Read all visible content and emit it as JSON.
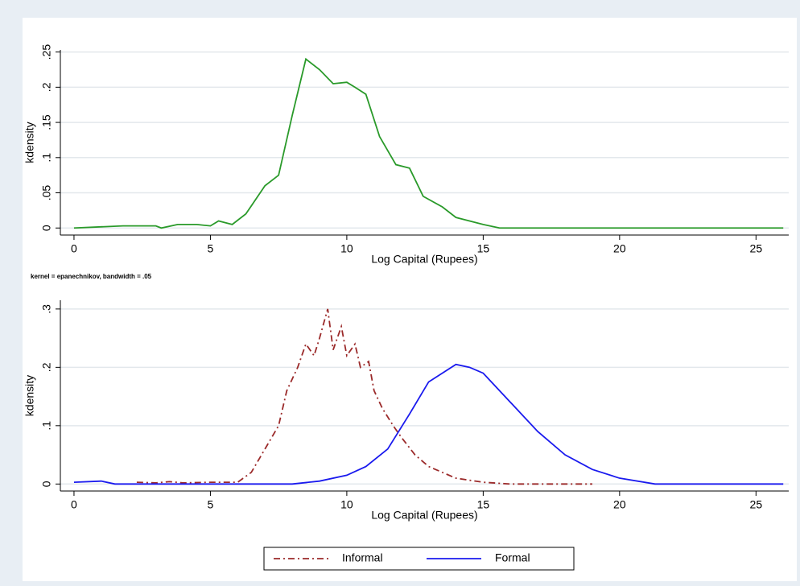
{
  "chart_data": [
    {
      "type": "line",
      "xlabel": "Log Capital (Rupees)",
      "ylabel": "kdensity",
      "note": "kernel = epanechnikov, bandwidth = .05",
      "xlim": [
        -0.5,
        26.2
      ],
      "xticks": [
        0,
        5,
        10,
        15,
        20,
        25
      ],
      "ylim": [
        -0.01,
        0.253
      ],
      "yticks": [
        0,
        {
          "value": 0.05,
          "label": ".05"
        },
        {
          "value": 0.1,
          "label": ".1"
        },
        {
          "value": 0.15,
          "label": ".15"
        },
        {
          "value": 0.2,
          "label": ".2"
        },
        {
          "value": 0.25,
          "label": ".25"
        }
      ],
      "grid": true,
      "series": [
        {
          "color": "#2a9a2a",
          "style": "solid",
          "x": [
            0,
            1.8,
            3,
            3.2,
            3.8,
            4.5,
            5,
            5.3,
            5.8,
            6.3,
            7,
            7.5,
            8,
            8.5,
            9,
            9.5,
            10,
            10.3,
            10.7,
            11.2,
            11.8,
            12.3,
            12.8,
            13.5,
            14,
            15,
            15.6,
            26
          ],
          "values": [
            0,
            0.003,
            0.003,
            0,
            0.005,
            0.005,
            0.003,
            0.01,
            0.005,
            0.02,
            0.06,
            0.075,
            0.16,
            0.24,
            0.225,
            0.205,
            0.207,
            0.2,
            0.19,
            0.13,
            0.09,
            0.085,
            0.045,
            0.03,
            0.015,
            0.005,
            0,
            0
          ]
        }
      ]
    },
    {
      "type": "line",
      "xlabel": "Log Capital (Rupees)",
      "ylabel": "kdensity",
      "xlim": [
        -0.5,
        26.2
      ],
      "xticks": [
        0,
        5,
        10,
        15,
        20,
        25
      ],
      "ylim": [
        -0.012,
        0.315
      ],
      "yticks": [
        0,
        {
          "value": 0.1,
          "label": ".1"
        },
        {
          "value": 0.2,
          "label": ".2"
        },
        {
          "value": 0.3,
          "label": ".3"
        }
      ],
      "grid": true,
      "legend": "bottom",
      "series": [
        {
          "name": "Informal",
          "color": "#9b2a2a",
          "style": "dashdot",
          "x": [
            2.3,
            3,
            3.5,
            4,
            5,
            6,
            6.5,
            7,
            7.5,
            7.8,
            8.2,
            8.5,
            8.8,
            9,
            9.3,
            9.5,
            9.8,
            10,
            10.3,
            10.5,
            10.8,
            11,
            11.3,
            11.7,
            12,
            12.5,
            13,
            13.5,
            14,
            15,
            16,
            19
          ],
          "values": [
            0.003,
            0.002,
            0.004,
            0.002,
            0.003,
            0.003,
            0.02,
            0.06,
            0.1,
            0.16,
            0.2,
            0.24,
            0.22,
            0.25,
            0.3,
            0.23,
            0.27,
            0.22,
            0.24,
            0.2,
            0.21,
            0.16,
            0.13,
            0.1,
            0.08,
            0.05,
            0.03,
            0.02,
            0.01,
            0.003,
            0,
            0
          ]
        },
        {
          "name": "Formal",
          "color": "#1a1aee",
          "style": "solid",
          "x": [
            0,
            1,
            1.5,
            8,
            9,
            10,
            10.7,
            11.5,
            12.3,
            13,
            13.5,
            14,
            14.5,
            15,
            16,
            17,
            18,
            19,
            20,
            21.3,
            26
          ],
          "values": [
            0.003,
            0.005,
            0,
            0,
            0.005,
            0.015,
            0.03,
            0.06,
            0.12,
            0.175,
            0.19,
            0.205,
            0.2,
            0.19,
            0.14,
            0.09,
            0.05,
            0.025,
            0.01,
            0,
            0
          ]
        }
      ]
    }
  ]
}
